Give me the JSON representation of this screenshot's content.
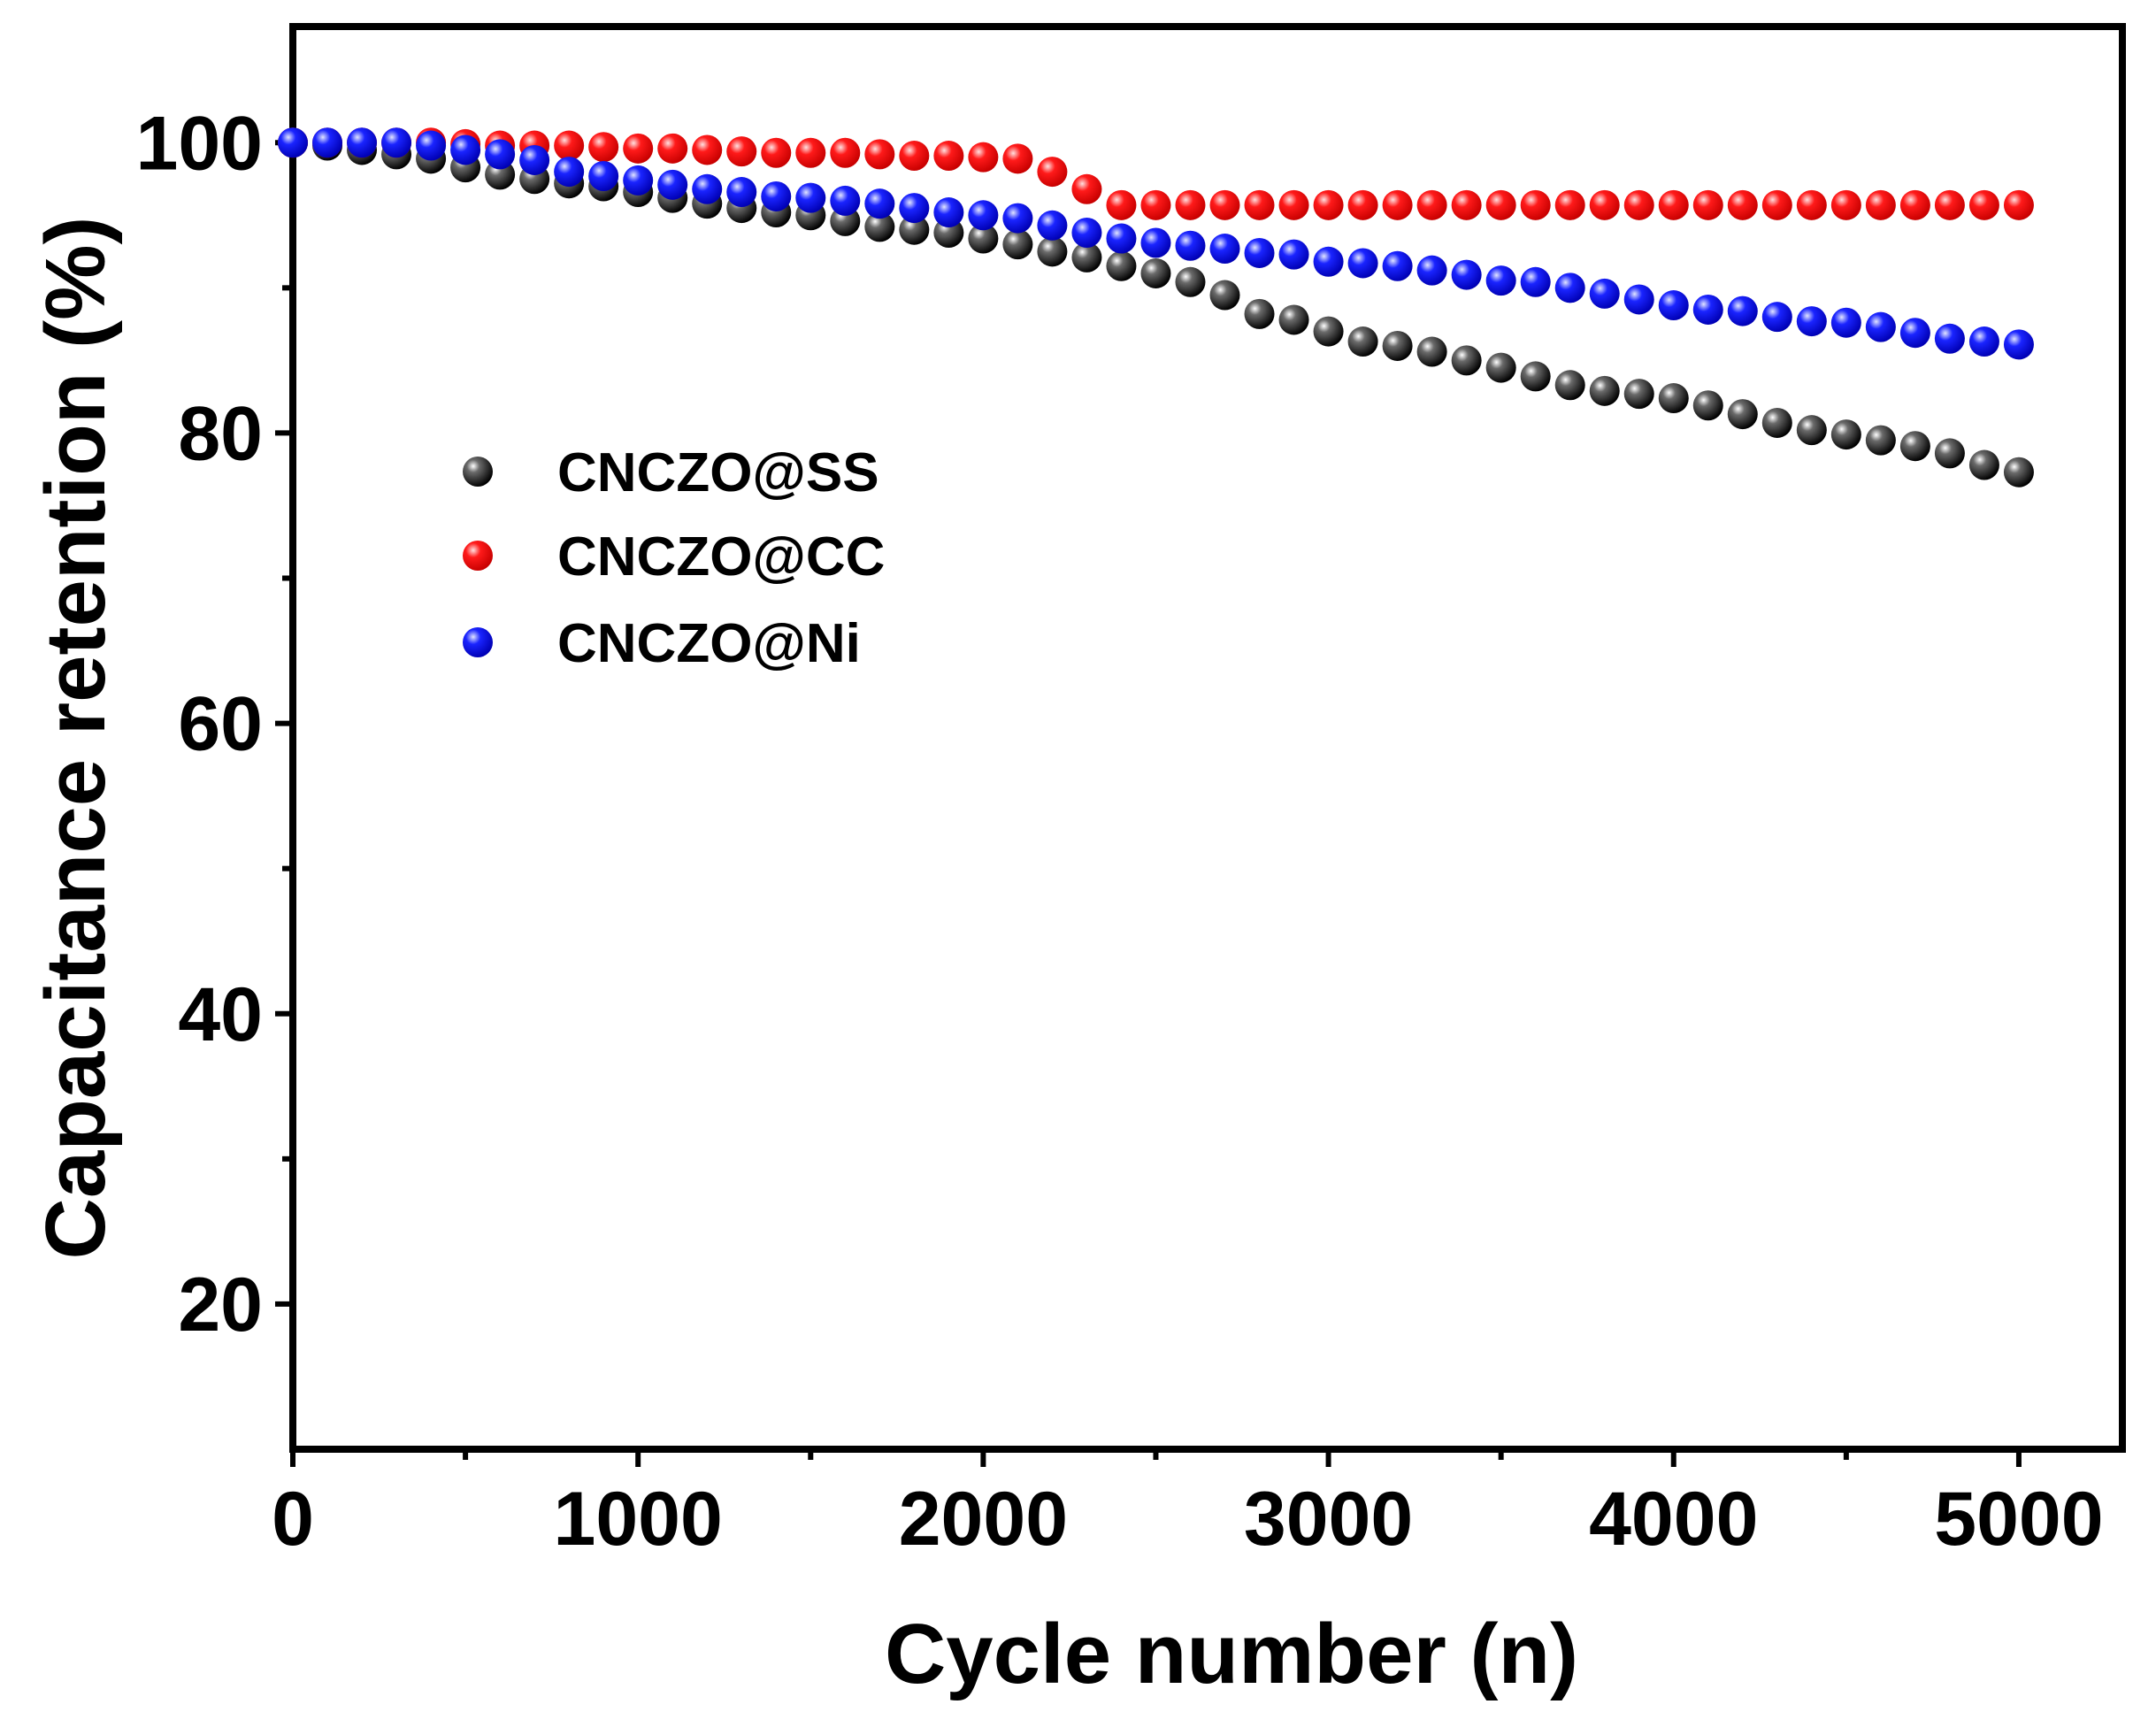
{
  "chart_data": {
    "type": "scatter",
    "title": "",
    "xlabel": "Cycle number (n)",
    "ylabel": "Capacitance retention (%)",
    "xlim": [
      0,
      5300
    ],
    "ylim": [
      10,
      108
    ],
    "xticks": [
      0,
      1000,
      2000,
      3000,
      4000,
      5000
    ],
    "xtick_labels": [
      "0",
      "1000",
      "2000",
      "3000",
      "4000",
      "5000"
    ],
    "yticks": [
      20,
      40,
      60,
      80,
      100
    ],
    "ytick_labels": [
      "20",
      "40",
      "60",
      "80",
      "100"
    ],
    "legend_position": "upper-left (inside)",
    "x": [
      0,
      100,
      200,
      300,
      400,
      500,
      600,
      700,
      800,
      900,
      1000,
      1100,
      1200,
      1300,
      1400,
      1500,
      1600,
      1700,
      1800,
      1900,
      2000,
      2100,
      2200,
      2300,
      2400,
      2500,
      2600,
      2700,
      2800,
      2900,
      3000,
      3100,
      3200,
      3300,
      3400,
      3500,
      3600,
      3700,
      3800,
      3900,
      4000,
      4100,
      4200,
      4300,
      4400,
      4500,
      4600,
      4700,
      4800,
      4900,
      5000
    ],
    "series": [
      {
        "name": "CNCZO@SS",
        "color": "#000000",
        "values": [
          100,
          99.8,
          99.5,
          99.2,
          98.9,
          98.3,
          97.8,
          97.5,
          97.2,
          97.0,
          96.6,
          96.2,
          95.8,
          95.5,
          95.2,
          95.0,
          94.6,
          94.2,
          94.0,
          93.8,
          93.4,
          93.0,
          92.5,
          92.1,
          91.5,
          91.0,
          90.4,
          89.5,
          88.2,
          87.8,
          87.0,
          86.3,
          86.0,
          85.6,
          85.0,
          84.5,
          83.9,
          83.3,
          82.9,
          82.7,
          82.4,
          81.9,
          81.3,
          80.7,
          80.2,
          79.9,
          79.5,
          79.1,
          78.6,
          77.8,
          77.3
        ]
      },
      {
        "name": "CNCZO@CC",
        "color": "#ff0000",
        "values": [
          100,
          100,
          100,
          100,
          100,
          99.9,
          99.8,
          99.8,
          99.8,
          99.7,
          99.6,
          99.6,
          99.5,
          99.4,
          99.3,
          99.3,
          99.3,
          99.2,
          99.1,
          99.1,
          99.0,
          98.9,
          98.0,
          96.8,
          95.7,
          95.7,
          95.7,
          95.7,
          95.7,
          95.7,
          95.7,
          95.7,
          95.7,
          95.7,
          95.7,
          95.7,
          95.7,
          95.7,
          95.7,
          95.7,
          95.7,
          95.7,
          95.7,
          95.7,
          95.7,
          95.7,
          95.7,
          95.7,
          95.7,
          95.7,
          95.7
        ]
      },
      {
        "name": "CNCZO@Ni",
        "color": "#0000ff",
        "values": [
          100,
          100,
          100,
          100,
          99.8,
          99.5,
          99.2,
          98.8,
          98.0,
          97.7,
          97.4,
          97.1,
          96.8,
          96.6,
          96.3,
          96.2,
          96.0,
          95.8,
          95.5,
          95.2,
          95.0,
          94.8,
          94.3,
          93.8,
          93.4,
          93.1,
          92.9,
          92.7,
          92.4,
          92.3,
          91.8,
          91.7,
          91.5,
          91.2,
          90.9,
          90.5,
          90.4,
          90.0,
          89.6,
          89.2,
          88.8,
          88.5,
          88.4,
          88.0,
          87.7,
          87.6,
          87.3,
          86.9,
          86.5,
          86.3,
          86.1
        ]
      }
    ]
  }
}
